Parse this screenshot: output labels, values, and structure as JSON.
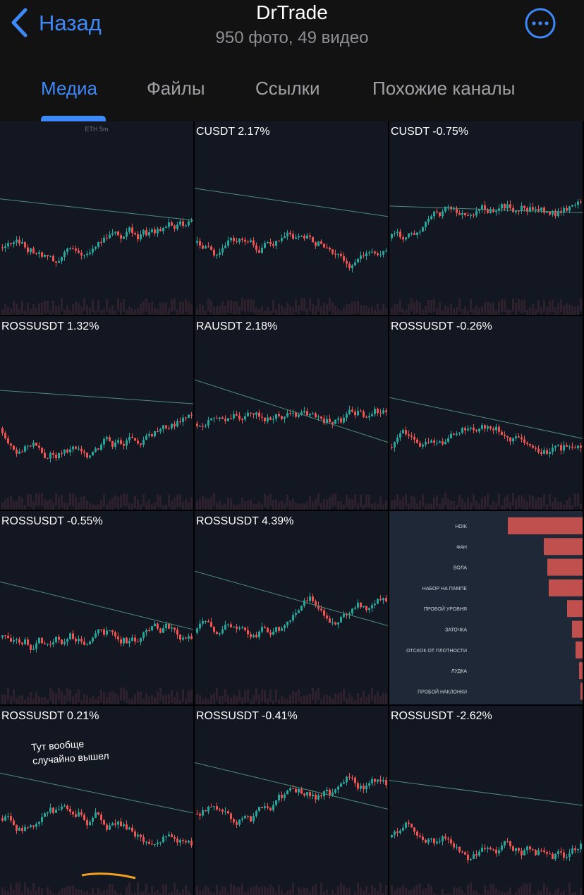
{
  "header": {
    "back": "Назад",
    "title": "DrTrade",
    "subtitle": "950 фото, 49 видео"
  },
  "tabs": [
    "Медиа",
    "Файлы",
    "Ссылки",
    "Похожие каналы"
  ],
  "tiles": [
    {
      "caption": "ETH 5m"
    },
    {
      "caption": "CUSDT 2.17%"
    },
    {
      "caption": "CUSDT -0.75%"
    },
    {
      "caption": "ROSSUSDT 1.32%"
    },
    {
      "caption": "RAUSDT 2.18%"
    },
    {
      "caption": "ROSSUSDT -0.26%"
    },
    {
      "caption": "ROSSUSDT -0.55%"
    },
    {
      "caption": "ROSSUSDT 4.39%"
    },
    {
      "labels": [
        "НОЖ",
        "ФАН",
        "ВОЛА",
        "НАБОР НА ПАМПЕ",
        "ПРОБОЙ УРОВНЯ",
        "ЗАТОЧКА",
        "ОТСКОК ОТ ПЛОТНОСТИ",
        "ЛУДКА",
        "ПРОБОЙ НАКЛОНКИ"
      ],
      "values": [
        106,
        55,
        50,
        48,
        22,
        15,
        10,
        5,
        3
      ]
    },
    {
      "caption": "ROSSUSDT 0.21%",
      "note": [
        "Тут вообще",
        "случайно вышел"
      ]
    },
    {
      "caption": "ROSSUSDT -0.41%"
    },
    {
      "caption": "ROSSUSDT -2.62%"
    }
  ]
}
